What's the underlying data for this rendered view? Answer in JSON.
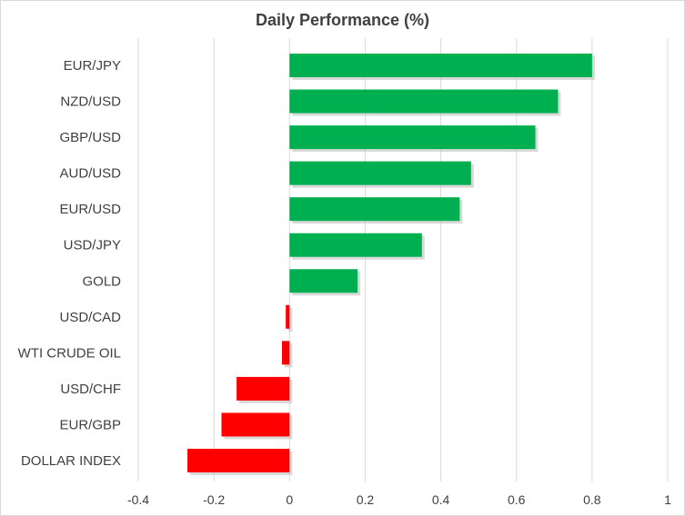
{
  "chart_data": {
    "type": "bar",
    "orientation": "horizontal",
    "title": "Daily Performance (%)",
    "xlabel": "",
    "ylabel": "",
    "xlim": [
      -0.4,
      1
    ],
    "xticks": [
      "-0.4",
      "-0.2",
      "0",
      "0.2",
      "0.4",
      "0.6",
      "0.8",
      "1"
    ],
    "grid": "vertical",
    "categories": [
      "EUR/JPY",
      "NZD/USD",
      "GBP/USD",
      "AUD/USD",
      "EUR/USD",
      "USD/JPY",
      "GOLD",
      "USD/CAD",
      "WTI CRUDE OIL",
      "USD/CHF",
      "EUR/GBP",
      "DOLLAR INDEX"
    ],
    "values": [
      0.8,
      0.71,
      0.65,
      0.48,
      0.45,
      0.35,
      0.18,
      -0.01,
      -0.02,
      -0.14,
      -0.18,
      -0.27
    ],
    "colors": {
      "positive": "#00b050",
      "negative": "#ff0000",
      "grid": "#d9d9d9",
      "text": "#404040"
    }
  }
}
